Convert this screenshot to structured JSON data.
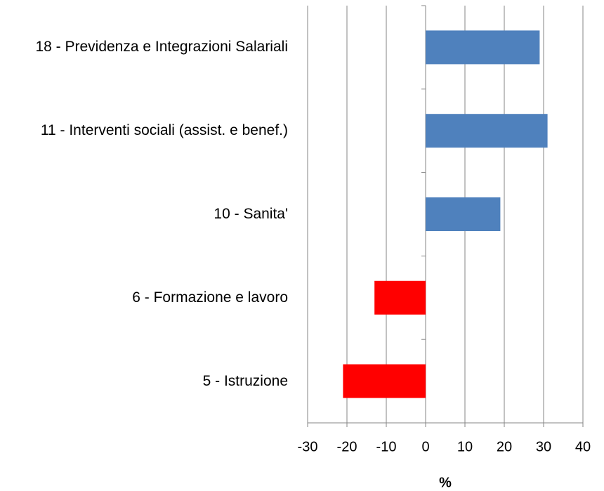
{
  "chart_data": {
    "type": "hbar",
    "categories": [
      "18 - Previdenza e Integrazioni Salariali",
      "11 - Interventi sociali (assist. e benef.)",
      "10 - Sanita'",
      "6 - Formazione e lavoro",
      "5 - Istruzione"
    ],
    "values": [
      29,
      31,
      19,
      -13,
      -21
    ],
    "colors": [
      "#4f81bd",
      "#4f81bd",
      "#4f81bd",
      "#ff0000",
      "#ff0000"
    ],
    "xlim": [
      -30,
      40
    ],
    "xticks": [
      -30,
      -20,
      -10,
      0,
      10,
      20,
      30,
      40
    ],
    "xlabel": "%",
    "grid": true
  }
}
